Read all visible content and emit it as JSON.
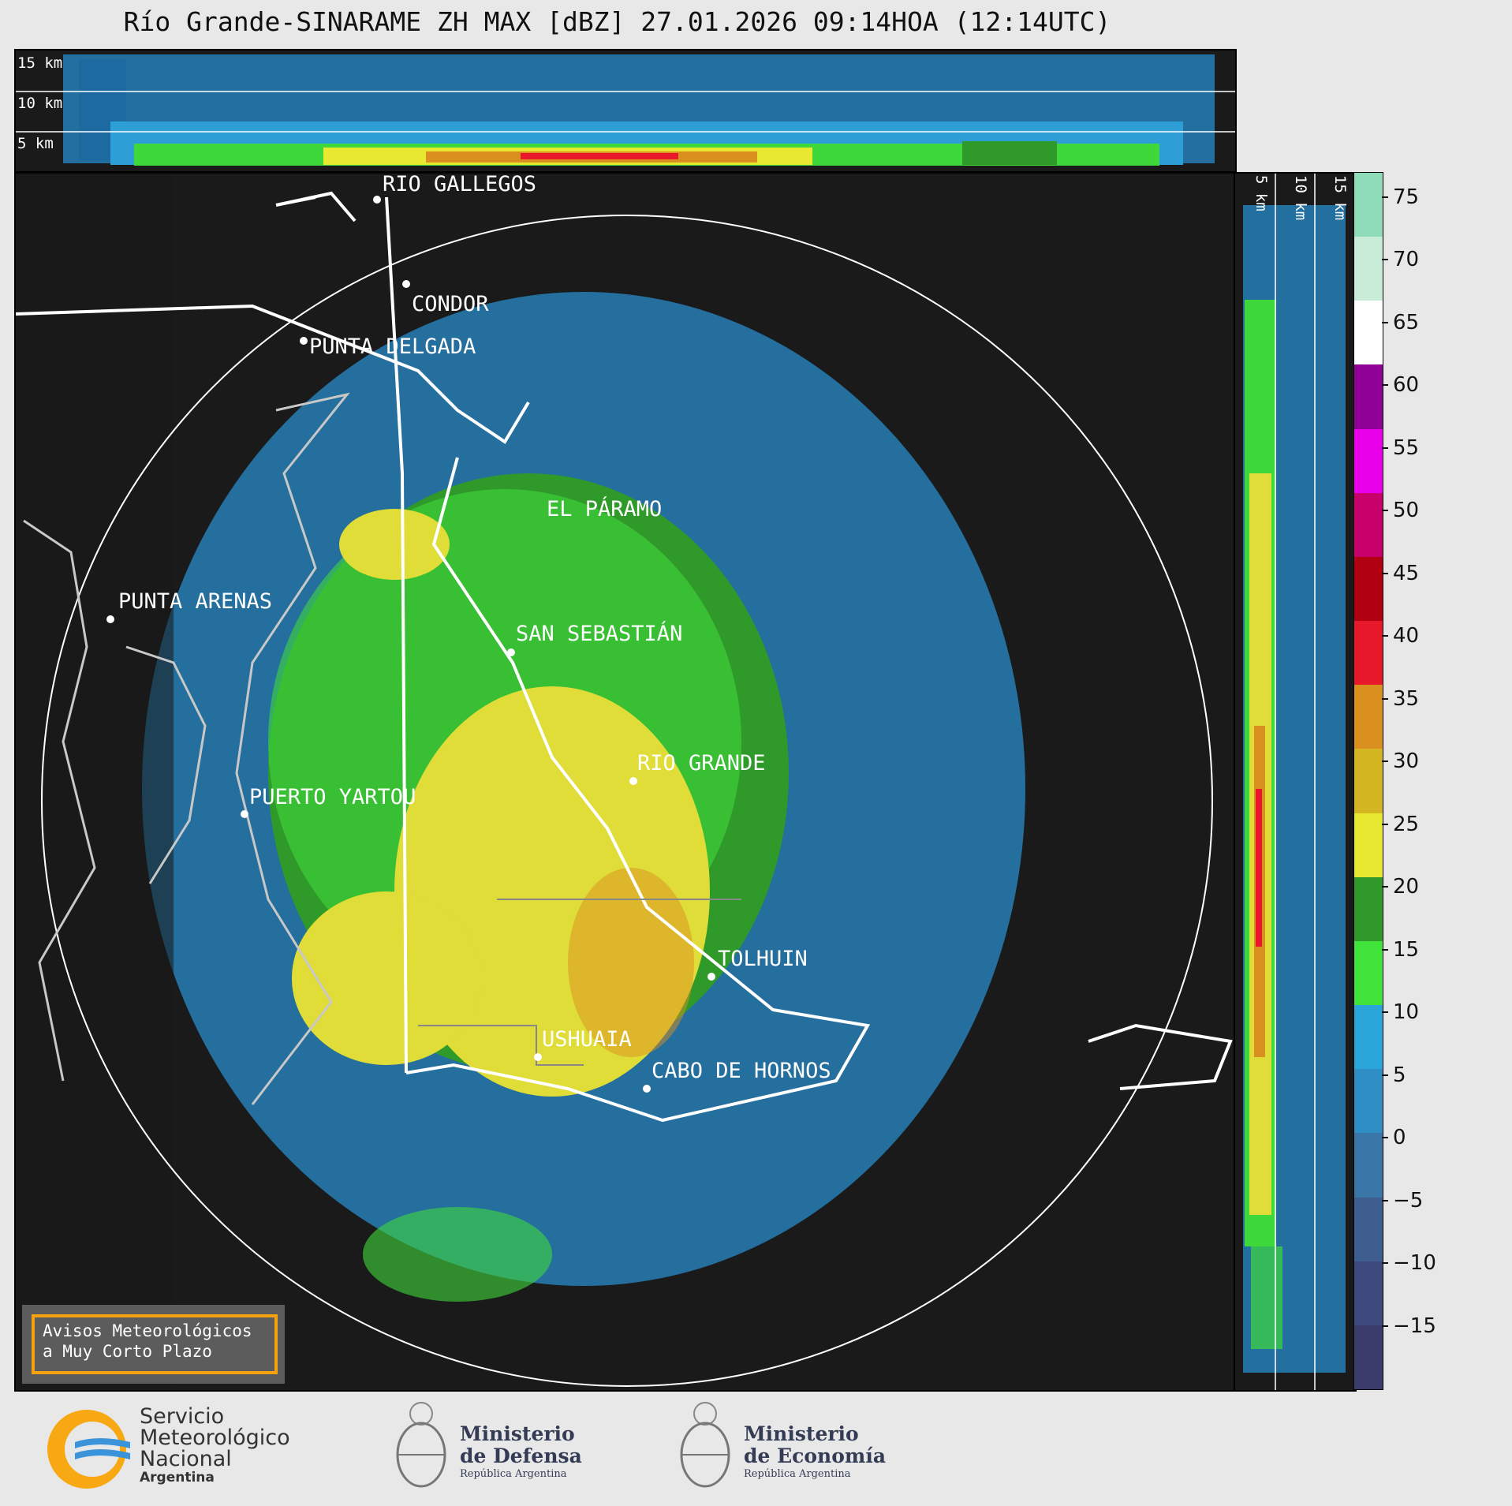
{
  "title": "Río Grande-SINARAME ZH MAX [dBZ] 27.01.2026 09:14HOA (12:14UTC)",
  "top_panel": {
    "km_labels": [
      "15 km",
      "10 km",
      "5 km"
    ]
  },
  "side_panel": {
    "km_labels": [
      "5 km",
      "10 km",
      "15 km"
    ]
  },
  "cities": [
    {
      "name": "RIO GALLEGOS"
    },
    {
      "name": "CONDOR"
    },
    {
      "name": "PUNTA DELGADA"
    },
    {
      "name": "EL PÁRAMO"
    },
    {
      "name": "PUNTA ARENAS"
    },
    {
      "name": "SAN SEBASTIÁN"
    },
    {
      "name": "RIO GRANDE"
    },
    {
      "name": "PUERTO YARTOU"
    },
    {
      "name": "TOLHUIN"
    },
    {
      "name": "USHUAIA"
    },
    {
      "name": "CABO DE HORNOS"
    }
  ],
  "warning_box": {
    "line1": "Avisos Meteorológicos",
    "line2": "a Muy Corto Plazo"
  },
  "colorbar": {
    "unit": "dBZ",
    "ticks": [
      "75",
      "70",
      "65",
      "60",
      "55",
      "50",
      "45",
      "40",
      "35",
      "30",
      "25",
      "20",
      "15",
      "10",
      "5",
      "0",
      "−5",
      "−10",
      "−15"
    ],
    "range": [
      -20,
      77
    ],
    "colors": [
      "#3a3d6b",
      "#3e4a7e",
      "#3e5e90",
      "#3b76a8",
      "#2f8fc4",
      "#2aa6db",
      "#3fe33a",
      "#2f9a2a",
      "#e8e830",
      "#d4b623",
      "#d9901e",
      "#e8182b",
      "#b00012",
      "#c8006a",
      "#ea00ea",
      "#8f0097",
      "#ffffff",
      "#c8ecd8",
      "#8fdcb8"
    ]
  },
  "logos": {
    "smn": {
      "line1": "Servicio",
      "line2": "Meteorológico",
      "line3": "Nacional",
      "line4": "Argentina"
    },
    "defensa": {
      "line1": "Ministerio",
      "line2": "de Defensa",
      "line3": "República Argentina"
    },
    "economia": {
      "line1": "Ministerio",
      "line2": "de Economía",
      "line3": "República Argentina"
    }
  }
}
